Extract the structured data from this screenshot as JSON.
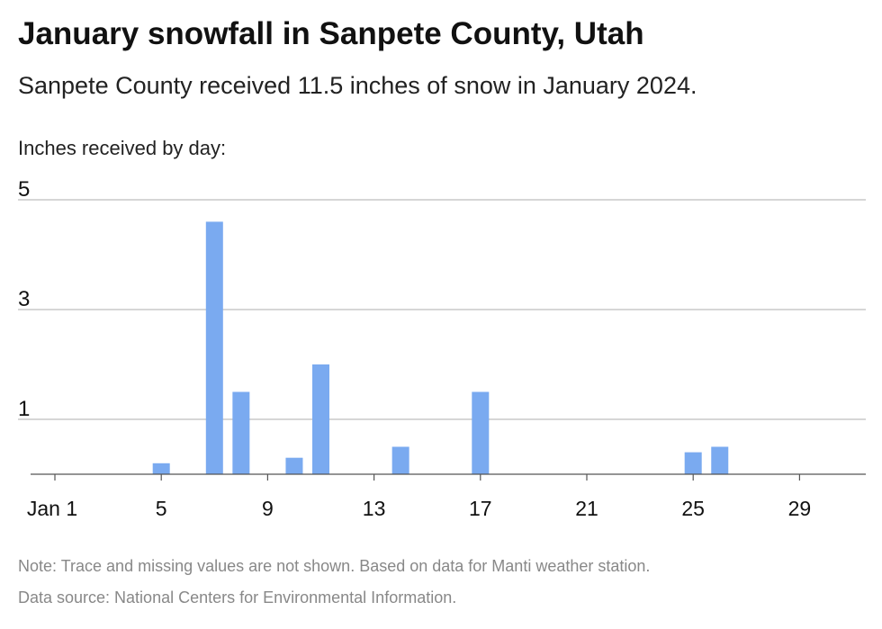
{
  "chart_data": {
    "type": "bar",
    "title": "January snowfall in Sanpete County, Utah",
    "subtitle": "Sanpete County received 11.5 inches of snow in January 2024.",
    "ylabel": "Inches received by day:",
    "xlabel": "",
    "x_tick_labels": [
      {
        "day": 1,
        "label": "Jan 1"
      },
      {
        "day": 5,
        "label": "5"
      },
      {
        "day": 9,
        "label": "9"
      },
      {
        "day": 13,
        "label": "13"
      },
      {
        "day": 17,
        "label": "17"
      },
      {
        "day": 21,
        "label": "21"
      },
      {
        "day": 25,
        "label": "25"
      },
      {
        "day": 29,
        "label": "29"
      }
    ],
    "y_ticks": [
      1,
      3,
      5
    ],
    "ylim": [
      0,
      5
    ],
    "xlim": [
      1,
      31
    ],
    "grid": true,
    "bar_color": "#7aaaf0",
    "data": [
      {
        "day": 5,
        "value": 0.2
      },
      {
        "day": 7,
        "value": 4.6
      },
      {
        "day": 8,
        "value": 1.5
      },
      {
        "day": 10,
        "value": 0.3
      },
      {
        "day": 11,
        "value": 2.0
      },
      {
        "day": 14,
        "value": 0.5
      },
      {
        "day": 17,
        "value": 1.5
      },
      {
        "day": 25,
        "value": 0.4
      },
      {
        "day": 26,
        "value": 0.5
      }
    ],
    "note": "Note: Trace and missing values are not shown. Based on data for Manti weather station.",
    "source": "Data source: National Centers for Environmental Information."
  }
}
